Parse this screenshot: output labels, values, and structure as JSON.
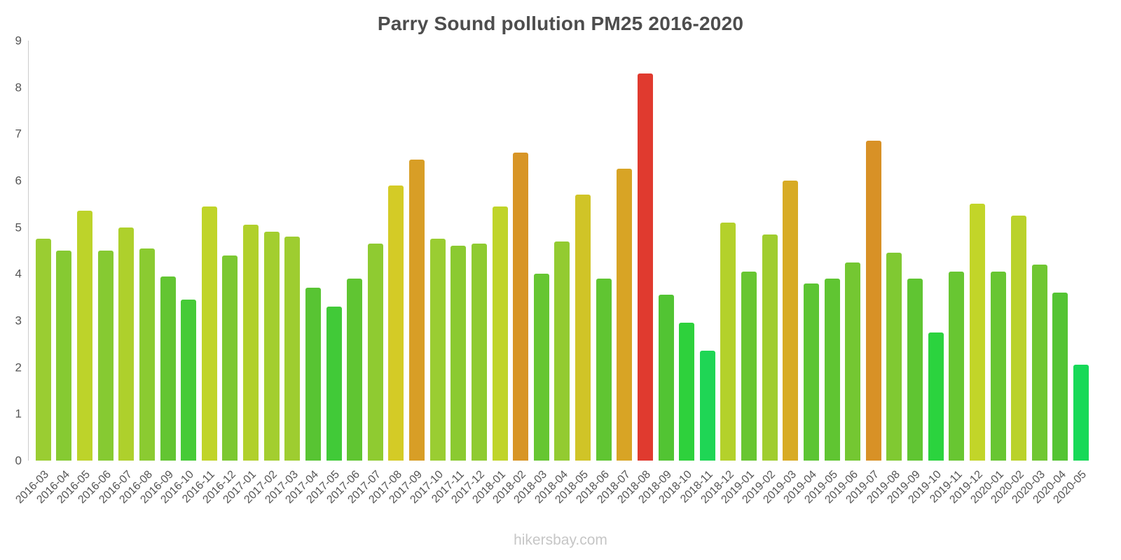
{
  "page": {
    "footer": "hikersbay.com"
  },
  "chart_data": {
    "type": "bar",
    "title": "Parry Sound pollution PM25 2016-2020",
    "xlabel": "",
    "ylabel": "",
    "ylim": [
      0,
      9
    ],
    "y_ticks": [
      0,
      1,
      2,
      3,
      4,
      5,
      6,
      7,
      8,
      9
    ],
    "grid": false,
    "legend": false,
    "categories": [
      "2016-03",
      "2016-04",
      "2016-05",
      "2016-06",
      "2016-07",
      "2016-08",
      "2016-09",
      "2016-10",
      "2016-11",
      "2016-12",
      "2017-01",
      "2017-02",
      "2017-03",
      "2017-04",
      "2017-05",
      "2017-06",
      "2017-07",
      "2017-08",
      "2017-09",
      "2017-10",
      "2017-11",
      "2017-12",
      "2018-01",
      "2018-02",
      "2018-03",
      "2018-04",
      "2018-05",
      "2018-06",
      "2018-07",
      "2018-08",
      "2018-09",
      "2018-10",
      "2018-11",
      "2018-12",
      "2019-01",
      "2019-02",
      "2019-03",
      "2019-04",
      "2019-05",
      "2019-06",
      "2019-07",
      "2019-08",
      "2019-09",
      "2019-10",
      "2019-11",
      "2019-12",
      "2020-01",
      "2020-02",
      "2020-03",
      "2020-04",
      "2020-05"
    ],
    "values": [
      4.75,
      4.5,
      5.35,
      4.5,
      5.0,
      4.55,
      3.95,
      3.45,
      5.45,
      4.4,
      5.05,
      4.9,
      4.8,
      3.7,
      3.3,
      3.9,
      4.65,
      5.9,
      6.45,
      4.75,
      4.6,
      4.65,
      5.45,
      6.6,
      4.0,
      4.7,
      5.7,
      3.9,
      6.25,
      8.3,
      3.55,
      2.95,
      2.35,
      5.1,
      4.05,
      4.85,
      6.0,
      3.8,
      3.9,
      4.25,
      6.85,
      4.45,
      3.9,
      2.75,
      4.05,
      5.5,
      4.05,
      5.25,
      4.2,
      3.6,
      2.05
    ],
    "colors": [
      "#9acd32",
      "#86ca32",
      "#bdd32a",
      "#86ca32",
      "#aed02c",
      "#8bcb31",
      "#63c532",
      "#46cb37",
      "#c0d429",
      "#7cc832",
      "#b1d02c",
      "#a3ce2f",
      "#9ecd30",
      "#58c433",
      "#41ca38",
      "#60c532",
      "#8fcb31",
      "#d4cb26",
      "#d89e26",
      "#9acd32",
      "#8bca31",
      "#8fcb31",
      "#c0d429",
      "#d89526",
      "#66c632",
      "#93cb31",
      "#d0c427",
      "#60c532",
      "#d8a425",
      "#e03a2f",
      "#52c433",
      "#2ed13c",
      "#1fd655",
      "#b4d12b",
      "#68c632",
      "#a0cd2f",
      "#d8ab25",
      "#5cc533",
      "#60c532",
      "#74c732",
      "#d89126",
      "#80c932",
      "#60c532",
      "#2bd33e",
      "#68c632",
      "#c2d529",
      "#68c632",
      "#bad22b",
      "#70c732",
      "#54c433",
      "#17d958"
    ],
    "axis_color": "#cccccc",
    "label_color": "#555555",
    "title_color": "#4d4d4d",
    "watermark_color": "#c6c6c6"
  }
}
